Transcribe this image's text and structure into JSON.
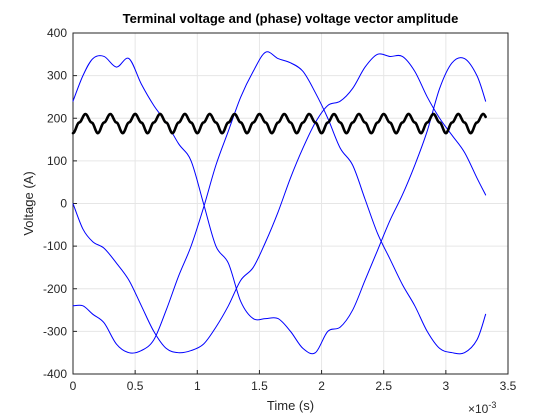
{
  "chart_data": {
    "type": "line",
    "title": "Terminal voltage and (phase) voltage vector amplitude",
    "xlabel": "Time (s)",
    "ylabel": "Voltage (A)",
    "x_exponent_label": "×10",
    "x_exponent_power": "-3",
    "xlim": [
      0,
      3.5
    ],
    "ylim": [
      -400,
      400
    ],
    "x_unit_scale": 0.001,
    "xticks": [
      0,
      0.5,
      1,
      1.5,
      2,
      2.5,
      3,
      3.5
    ],
    "xtick_labels": [
      "0",
      "0.5",
      "1",
      "1.5",
      "2",
      "2.5",
      "3",
      "3.5"
    ],
    "yticks": [
      -400,
      -300,
      -200,
      -100,
      0,
      100,
      200,
      300,
      400
    ],
    "ytick_labels": [
      "-400",
      "-300",
      "-200",
      "-100",
      "0",
      "100",
      "200",
      "300",
      "400"
    ],
    "grid": true,
    "colors": {
      "phase": "#0000ff",
      "amplitude": "#000000",
      "grid": "#e6e6e6",
      "axis": "#262626"
    },
    "series": [
      {
        "role": "phase-a",
        "color": "#0000ff",
        "x": [
          0,
          0.08,
          0.16,
          0.25,
          0.35,
          0.45,
          0.55,
          0.65,
          0.75,
          0.85,
          0.95,
          1.05,
          1.15,
          1.25,
          1.35,
          1.45,
          1.55,
          1.65,
          1.75,
          1.85,
          1.95,
          2.05,
          2.15,
          2.25,
          2.35,
          2.45,
          2.55,
          2.65,
          2.75,
          2.85,
          2.95,
          3.05,
          3.15,
          3.25,
          3.32
        ],
        "values": [
          0,
          -60,
          -90,
          -105,
          -140,
          -180,
          -240,
          -300,
          -340,
          -350,
          -345,
          -330,
          -290,
          -240,
          -180,
          -150,
          -90,
          -20,
          60,
          130,
          190,
          230,
          240,
          270,
          320,
          350,
          345,
          345,
          310,
          250,
          200,
          160,
          120,
          60,
          20
        ]
      },
      {
        "role": "phase-b",
        "color": "#0000ff",
        "x": [
          0,
          0.08,
          0.16,
          0.25,
          0.35,
          0.45,
          0.55,
          0.65,
          0.75,
          0.85,
          0.95,
          1.05,
          1.15,
          1.25,
          1.35,
          1.45,
          1.55,
          1.65,
          1.75,
          1.85,
          1.95,
          2.05,
          2.15,
          2.25,
          2.35,
          2.45,
          2.55,
          2.65,
          2.75,
          2.85,
          2.95,
          3.05,
          3.15,
          3.25,
          3.32
        ],
        "values": [
          -240,
          -240,
          -260,
          -280,
          -330,
          -350,
          -345,
          -320,
          -250,
          -170,
          -100,
          -10,
          90,
          170,
          250,
          310,
          355,
          340,
          330,
          310,
          260,
          200,
          130,
          90,
          10,
          -70,
          -130,
          -190,
          -240,
          -300,
          -340,
          -350,
          -350,
          -320,
          -260
        ]
      },
      {
        "role": "phase-c",
        "color": "#0000ff",
        "x": [
          0,
          0.08,
          0.16,
          0.25,
          0.35,
          0.45,
          0.55,
          0.65,
          0.75,
          0.85,
          0.95,
          1.05,
          1.15,
          1.25,
          1.35,
          1.45,
          1.55,
          1.65,
          1.75,
          1.85,
          1.95,
          2.05,
          2.15,
          2.25,
          2.35,
          2.45,
          2.55,
          2.65,
          2.75,
          2.85,
          2.95,
          3.05,
          3.15,
          3.25,
          3.32
        ],
        "values": [
          240,
          300,
          340,
          345,
          320,
          340,
          280,
          230,
          190,
          140,
          100,
          0,
          -100,
          -140,
          -230,
          -270,
          -270,
          -270,
          -300,
          -340,
          -350,
          -300,
          -290,
          -250,
          -180,
          -110,
          -40,
          20,
          90,
          170,
          270,
          330,
          340,
          300,
          240
        ]
      },
      {
        "role": "amplitude",
        "color": "#000000",
        "period": 0.2,
        "x_start": 0,
        "x_end": 3.32,
        "x": [
          0,
          0.05,
          0.1,
          0.15,
          0.2
        ],
        "values": [
          165,
          190,
          210,
          190,
          165
        ]
      }
    ]
  }
}
